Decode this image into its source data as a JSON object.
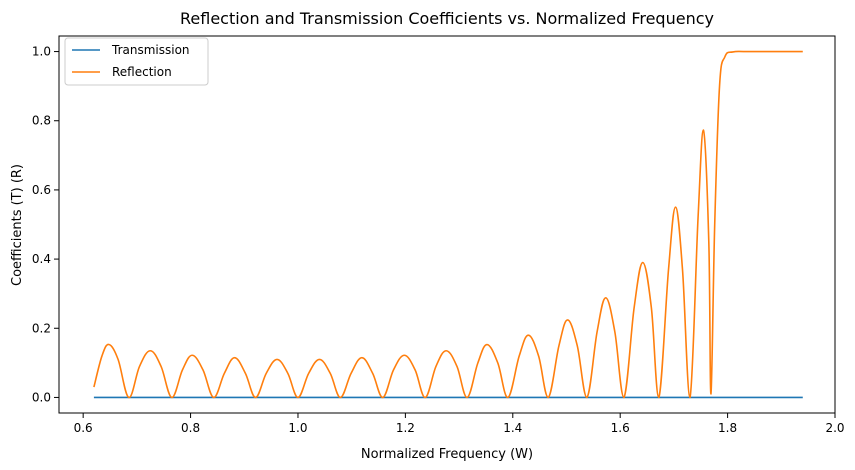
{
  "chart_data": {
    "type": "line",
    "title": "Reflection and Transmission Coefficients vs. Normalized Frequency",
    "xlabel": "Normalized Frequency (W)",
    "ylabel": "Coefficients (T) (R)",
    "xlim": [
      0.555,
      2.0
    ],
    "ylim": [
      -0.045,
      1.045
    ],
    "xticks": [
      "0.6",
      "0.8",
      "1.0",
      "1.2",
      "1.4",
      "1.6",
      "1.8",
      "2.0"
    ],
    "yticks": [
      "0.0",
      "0.2",
      "0.4",
      "0.6",
      "0.8",
      "1.0"
    ],
    "grid": false,
    "legend_position": "top-left",
    "series": [
      {
        "name": "Transmission",
        "color": "#1f77b4",
        "x": [
          0.62,
          1.94
        ],
        "y": [
          0.0,
          0.0
        ]
      },
      {
        "name": "Reflection",
        "color": "#ff7f0e",
        "points": [
          [
            0.62,
            0.03
          ],
          [
            0.635,
            0.12
          ],
          [
            0.648,
            0.153
          ],
          [
            0.665,
            0.11
          ],
          [
            0.685,
            0.0
          ],
          [
            0.705,
            0.09
          ],
          [
            0.725,
            0.135
          ],
          [
            0.745,
            0.09
          ],
          [
            0.765,
            0.0
          ],
          [
            0.785,
            0.08
          ],
          [
            0.803,
            0.122
          ],
          [
            0.823,
            0.08
          ],
          [
            0.843,
            0.0
          ],
          [
            0.863,
            0.07
          ],
          [
            0.882,
            0.115
          ],
          [
            0.902,
            0.07
          ],
          [
            0.921,
            0.0
          ],
          [
            0.941,
            0.07
          ],
          [
            0.961,
            0.11
          ],
          [
            0.981,
            0.07
          ],
          [
            1.0,
            0.0
          ],
          [
            1.02,
            0.07
          ],
          [
            1.04,
            0.11
          ],
          [
            1.06,
            0.07
          ],
          [
            1.079,
            0.0
          ],
          [
            1.099,
            0.07
          ],
          [
            1.119,
            0.115
          ],
          [
            1.139,
            0.07
          ],
          [
            1.158,
            0.0
          ],
          [
            1.178,
            0.08
          ],
          [
            1.198,
            0.122
          ],
          [
            1.218,
            0.08
          ],
          [
            1.237,
            0.0
          ],
          [
            1.257,
            0.09
          ],
          [
            1.276,
            0.135
          ],
          [
            1.296,
            0.09
          ],
          [
            1.315,
            0.0
          ],
          [
            1.335,
            0.1
          ],
          [
            1.352,
            0.153
          ],
          [
            1.372,
            0.1
          ],
          [
            1.391,
            0.0
          ],
          [
            1.412,
            0.12
          ],
          [
            1.429,
            0.18
          ],
          [
            1.448,
            0.12
          ],
          [
            1.466,
            0.0
          ],
          [
            1.486,
            0.15
          ],
          [
            1.502,
            0.224
          ],
          [
            1.52,
            0.15
          ],
          [
            1.538,
            0.0
          ],
          [
            1.557,
            0.19
          ],
          [
            1.573,
            0.288
          ],
          [
            1.59,
            0.19
          ],
          [
            1.607,
            0.0
          ],
          [
            1.626,
            0.26
          ],
          [
            1.642,
            0.39
          ],
          [
            1.658,
            0.26
          ],
          [
            1.672,
            0.0
          ],
          [
            1.69,
            0.37
          ],
          [
            1.703,
            0.55
          ],
          [
            1.716,
            0.37
          ],
          [
            1.73,
            0.0
          ],
          [
            1.745,
            0.52
          ],
          [
            1.755,
            0.773
          ],
          [
            1.765,
            0.45
          ],
          [
            1.769,
            0.01
          ],
          [
            1.776,
            0.5
          ],
          [
            1.785,
            0.9
          ],
          [
            1.795,
            0.985
          ],
          [
            1.81,
            0.999
          ],
          [
            1.84,
            1.0
          ],
          [
            1.94,
            1.0
          ]
        ]
      }
    ]
  }
}
